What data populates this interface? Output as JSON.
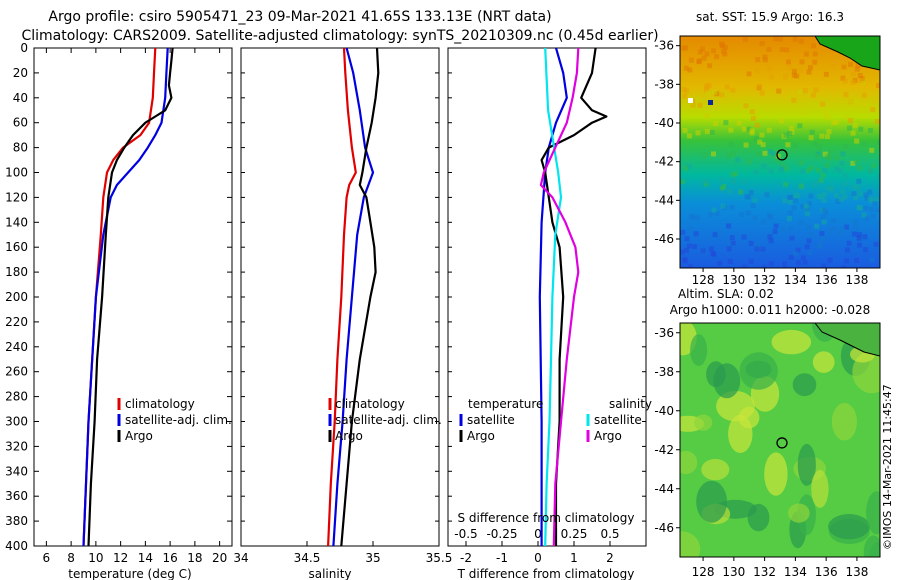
{
  "header": {
    "line1": "Argo profile: csiro 5905471_23 09-Mar-2021 41.65S 133.13E (NRT data)",
    "line2": "Climatology: CARS2009. Satellite-adjusted climatology: synTS_20210309.nc (0.45d earlier)"
  },
  "colors": {
    "climatology": "#e00000",
    "satellite": "#0000e0",
    "argo": "#000000",
    "sat_temp_diff": "#00e5ee",
    "sal_diff": "#e000e0"
  },
  "chart_data": [
    {
      "type": "line",
      "id": "temperature",
      "xlabel": "temperature (deg C)",
      "ylabel": "",
      "xlim": [
        5,
        21
      ],
      "ylim": [
        400,
        0
      ],
      "xticks": [
        6,
        8,
        10,
        12,
        14,
        16,
        18,
        20
      ],
      "yticks": [
        0,
        20,
        40,
        60,
        80,
        100,
        120,
        140,
        160,
        180,
        200,
        220,
        240,
        260,
        280,
        300,
        320,
        340,
        360,
        380,
        400
      ],
      "legend": [
        "climatology",
        "satellite-adj. clim.",
        "Argo"
      ],
      "series": [
        {
          "name": "climatology",
          "color": "#e00000",
          "depth": [
            0,
            20,
            40,
            60,
            70,
            80,
            90,
            100,
            120,
            150,
            200,
            250,
            300,
            350,
            400
          ],
          "values": [
            14.8,
            14.7,
            14.6,
            14.3,
            13.6,
            12.2,
            11.4,
            10.9,
            10.6,
            10.4,
            10.0,
            9.7,
            9.4,
            9.2,
            9.0
          ]
        },
        {
          "name": "satellite-adj. clim.",
          "color": "#0000e0",
          "depth": [
            0,
            20,
            40,
            60,
            70,
            80,
            90,
            100,
            110,
            120,
            150,
            200,
            250,
            300,
            350,
            400
          ],
          "values": [
            15.8,
            15.7,
            15.6,
            15.3,
            14.8,
            14.2,
            13.5,
            12.6,
            11.7,
            11.2,
            10.6,
            10.0,
            9.7,
            9.4,
            9.2,
            9.0
          ]
        },
        {
          "name": "Argo",
          "color": "#000000",
          "depth": [
            0,
            10,
            20,
            30,
            40,
            50,
            55,
            60,
            70,
            80,
            90,
            100,
            120,
            150,
            200,
            250,
            300,
            350,
            400
          ],
          "values": [
            16.2,
            16.1,
            16.0,
            15.9,
            16.1,
            15.6,
            14.8,
            14.0,
            13.0,
            12.3,
            11.7,
            11.3,
            11.0,
            10.8,
            10.5,
            10.1,
            9.9,
            9.6,
            9.4
          ]
        }
      ]
    },
    {
      "type": "line",
      "id": "salinity",
      "xlabel": "salinity",
      "xlim": [
        34,
        35.5
      ],
      "ylim": [
        400,
        0
      ],
      "xticks": [
        "34",
        "34.5",
        "35",
        "35.5"
      ],
      "xtick_values": [
        34,
        34.5,
        35,
        35.5
      ],
      "legend": [
        "climatology",
        "satellite-adj. clim.",
        "Argo"
      ],
      "series": [
        {
          "name": "climatology",
          "color": "#e00000",
          "depth": [
            0,
            20,
            50,
            80,
            100,
            110,
            120,
            150,
            200,
            250,
            300,
            350,
            400
          ],
          "values": [
            34.78,
            34.79,
            34.81,
            34.84,
            34.87,
            34.82,
            34.8,
            34.78,
            34.76,
            34.73,
            34.71,
            34.68,
            34.66
          ]
        },
        {
          "name": "satellite-adj. clim.",
          "color": "#0000e0",
          "depth": [
            0,
            20,
            50,
            80,
            90,
            100,
            120,
            150,
            200,
            250,
            300,
            350,
            400
          ],
          "values": [
            34.8,
            34.85,
            34.9,
            34.94,
            34.97,
            35.0,
            34.93,
            34.88,
            34.84,
            34.8,
            34.77,
            34.73,
            34.7
          ]
        },
        {
          "name": "Argo",
          "color": "#000000",
          "depth": [
            0,
            20,
            40,
            60,
            80,
            100,
            110,
            120,
            140,
            160,
            180,
            200,
            250,
            300,
            350,
            400
          ],
          "values": [
            35.03,
            35.04,
            35.02,
            34.99,
            34.95,
            34.92,
            34.9,
            34.95,
            34.98,
            35.01,
            35.02,
            34.98,
            34.9,
            34.84,
            34.8,
            34.76
          ]
        }
      ]
    },
    {
      "type": "line",
      "id": "differences",
      "xlabel": "T difference from climatology",
      "top_axis_label": "S difference from climatology",
      "xlim": [
        -2.5,
        3
      ],
      "ylim": [
        400,
        0
      ],
      "xticks": [
        "-2",
        "-1",
        "0",
        "1",
        "2"
      ],
      "xtick_values": [
        -2,
        -1,
        0,
        1,
        2
      ],
      "top_ticks": [
        "-0.5",
        "-0.25",
        "0",
        "0.25",
        "0.5"
      ],
      "legend_temperature_title": "temperature",
      "legend_salinity_title": "salinity",
      "legend": [
        "satellite",
        "Argo",
        "satellite",
        "Argo"
      ],
      "series": [
        {
          "name": "temperature satellite",
          "color": "#0000e0",
          "depth": [
            0,
            20,
            40,
            60,
            80,
            100,
            140,
            200,
            300,
            400
          ],
          "values": [
            0.5,
            0.7,
            0.8,
            0.5,
            0.3,
            0.2,
            0.1,
            0.05,
            0.1,
            0.1
          ]
        },
        {
          "name": "temperature Argo",
          "color": "#000000",
          "depth": [
            0,
            20,
            40,
            50,
            55,
            60,
            70,
            80,
            90,
            100,
            120,
            140,
            160,
            200,
            250,
            300,
            350,
            400
          ],
          "values": [
            1.6,
            1.5,
            1.2,
            1.5,
            1.9,
            1.5,
            1.0,
            0.3,
            0.1,
            0.2,
            0.3,
            0.4,
            0.6,
            0.7,
            0.6,
            0.6,
            0.5,
            0.5
          ]
        },
        {
          "name": "salinity satellite",
          "color": "#00e5ee",
          "depth": [
            0,
            50,
            100,
            120,
            150,
            200,
            250,
            300,
            350,
            400
          ],
          "values": [
            0.05,
            0.07,
            0.14,
            0.16,
            0.12,
            0.1,
            0.09,
            0.08,
            0.06,
            0.05
          ]
        },
        {
          "name": "salinity Argo",
          "color": "#e000e0",
          "depth": [
            0,
            20,
            40,
            60,
            80,
            100,
            110,
            120,
            140,
            160,
            180,
            200,
            250,
            300,
            350,
            400
          ],
          "values": [
            0.28,
            0.27,
            0.24,
            0.2,
            0.12,
            0.04,
            0.02,
            0.1,
            0.19,
            0.26,
            0.28,
            0.25,
            0.2,
            0.16,
            0.12,
            0.11
          ]
        }
      ]
    }
  ],
  "maps": {
    "top_title": "sat. SST: 15.9 Argo: 16.3",
    "bottom_title_1": "Altim. SLA: 0.02",
    "bottom_title_2": "Argo h1000: 0.011 h2000: -0.028",
    "lat_ticks": [
      "-36",
      "-38",
      "-40",
      "-42",
      "-44",
      "-46"
    ],
    "lon_ticks": [
      "128",
      "130",
      "132",
      "134",
      "136",
      "138"
    ],
    "lat_range": [
      -47.5,
      -35.5
    ],
    "lon_range": [
      126.5,
      139.5
    ],
    "argo_position": {
      "lat": -41.65,
      "lon": 133.13
    }
  },
  "watermark": "©IMOS 14-Mar-2021 11:45:47"
}
